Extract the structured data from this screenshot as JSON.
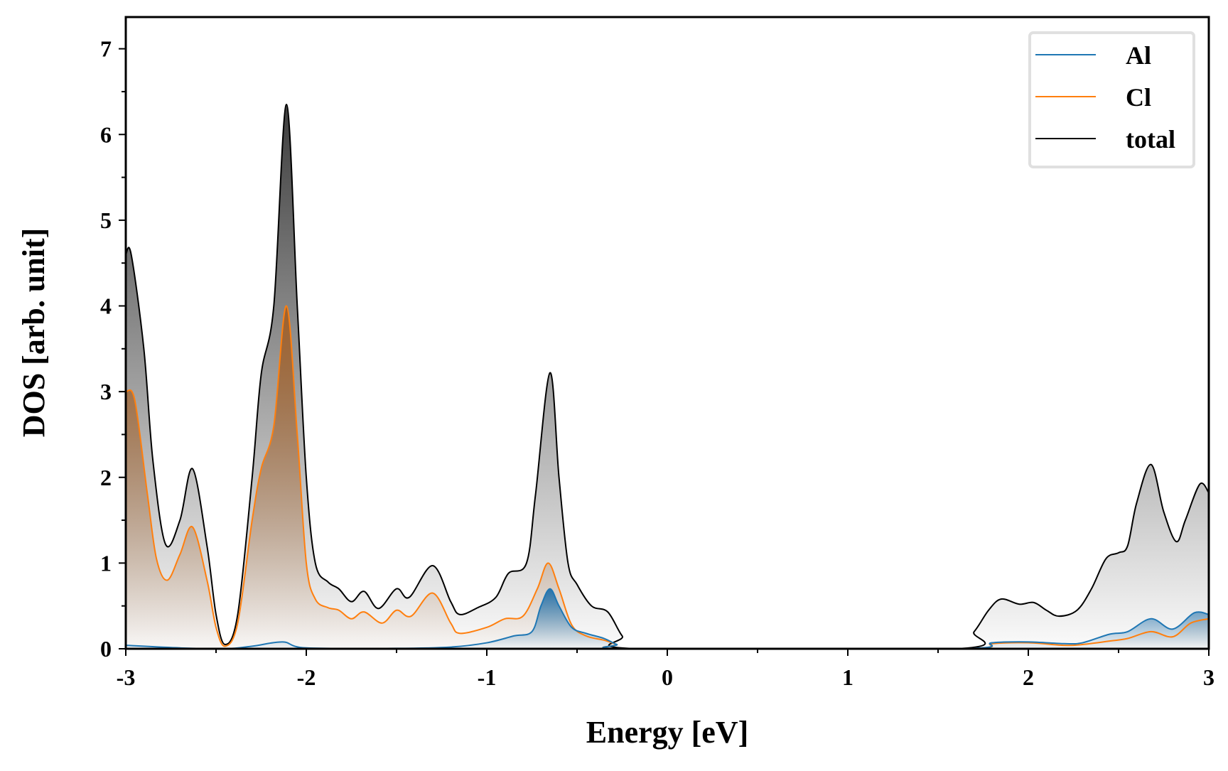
{
  "chart_data": {
    "type": "area",
    "title": "",
    "xlabel": "Energy [eV]",
    "ylabel": "DOS [arb. unit]",
    "xlim": [
      -3,
      3
    ],
    "ylim": [
      0,
      7.37
    ],
    "xticks": [
      -3,
      -2,
      -1,
      0,
      1,
      2,
      3
    ],
    "xtick_labels": [
      "-3",
      "-2",
      "-1",
      "0",
      "1",
      "2",
      "3"
    ],
    "yticks": [
      0,
      1,
      2,
      3,
      4,
      5,
      6,
      7
    ],
    "ytick_labels": [
      "0",
      "1",
      "2",
      "3",
      "4",
      "5",
      "6",
      "7"
    ],
    "grid": false,
    "legend_position": "top-right",
    "series": [
      {
        "name": "Al",
        "color": "#1f77b4",
        "fill": "#1f6ea8",
        "x": [
          -3,
          -2.7,
          -2.45,
          -2.3,
          -2.13,
          -2.0,
          -1.5,
          -1.2,
          -1.0,
          -0.85,
          -0.75,
          -0.7,
          -0.65,
          -0.6,
          -0.53,
          -0.45,
          -0.35,
          -0.28,
          -0.2,
          1.6,
          1.8,
          2.0,
          2.2,
          2.3,
          2.45,
          2.55,
          2.68,
          2.8,
          2.92,
          3.0
        ],
        "y": [
          0.04,
          0.01,
          0.0,
          0.03,
          0.08,
          0.01,
          0.005,
          0.02,
          0.07,
          0.15,
          0.2,
          0.5,
          0.7,
          0.5,
          0.25,
          0.18,
          0.12,
          0.05,
          0.0,
          0.0,
          0.07,
          0.08,
          0.06,
          0.07,
          0.17,
          0.2,
          0.35,
          0.23,
          0.42,
          0.4
        ]
      },
      {
        "name": "Cl",
        "color": "#ff7f0e",
        "fill": "#a0602a",
        "x": [
          -3,
          -2.95,
          -2.88,
          -2.83,
          -2.77,
          -2.7,
          -2.63,
          -2.55,
          -2.5,
          -2.45,
          -2.38,
          -2.3,
          -2.25,
          -2.18,
          -2.11,
          -2.05,
          -2.0,
          -1.95,
          -1.88,
          -1.82,
          -1.75,
          -1.68,
          -1.58,
          -1.5,
          -1.42,
          -1.3,
          -1.2,
          -1.15,
          -1.0,
          -0.9,
          -0.8,
          -0.72,
          -0.66,
          -0.6,
          -0.53,
          -0.45,
          -0.35,
          -0.28,
          -0.2,
          1.6,
          1.8,
          2.0,
          2.2,
          2.3,
          2.45,
          2.55,
          2.68,
          2.8,
          2.9,
          3.0
        ],
        "y": [
          3.0,
          2.9,
          1.8,
          1.05,
          0.8,
          1.1,
          1.42,
          0.8,
          0.25,
          0.03,
          0.3,
          1.5,
          2.1,
          2.6,
          4.0,
          2.5,
          1.0,
          0.58,
          0.48,
          0.45,
          0.35,
          0.43,
          0.3,
          0.45,
          0.38,
          0.65,
          0.3,
          0.18,
          0.25,
          0.35,
          0.38,
          0.7,
          1.0,
          0.7,
          0.28,
          0.15,
          0.1,
          0.05,
          0.0,
          0.0,
          0.06,
          0.07,
          0.04,
          0.05,
          0.09,
          0.12,
          0.2,
          0.14,
          0.3,
          0.35
        ]
      },
      {
        "name": "total",
        "color": "#000000",
        "fill": "#333333",
        "x": [
          -3,
          -2.97,
          -2.9,
          -2.85,
          -2.78,
          -2.7,
          -2.63,
          -2.55,
          -2.5,
          -2.45,
          -2.38,
          -2.3,
          -2.25,
          -2.18,
          -2.11,
          -2.05,
          -2.0,
          -1.95,
          -1.88,
          -1.82,
          -1.75,
          -1.68,
          -1.6,
          -1.5,
          -1.43,
          -1.3,
          -1.2,
          -1.15,
          -1.05,
          -0.95,
          -0.88,
          -0.78,
          -0.73,
          -0.65,
          -0.6,
          -0.55,
          -0.5,
          -0.42,
          -0.33,
          -0.25,
          -0.17,
          1.6,
          1.7,
          1.78,
          1.85,
          1.95,
          2.03,
          2.1,
          2.17,
          2.27,
          2.35,
          2.43,
          2.5,
          2.55,
          2.6,
          2.68,
          2.75,
          2.82,
          2.87,
          2.95,
          3.0
        ],
        "y": [
          4.6,
          4.6,
          3.5,
          2.2,
          1.22,
          1.5,
          2.1,
          1.2,
          0.4,
          0.05,
          0.4,
          2.0,
          3.2,
          4.0,
          6.35,
          4.0,
          2.0,
          1.0,
          0.78,
          0.7,
          0.55,
          0.67,
          0.47,
          0.7,
          0.6,
          0.97,
          0.55,
          0.4,
          0.48,
          0.6,
          0.88,
          1.0,
          1.8,
          3.22,
          2.0,
          1.0,
          0.75,
          0.5,
          0.43,
          0.15,
          0.0,
          0.0,
          0.2,
          0.45,
          0.58,
          0.52,
          0.54,
          0.45,
          0.38,
          0.45,
          0.7,
          1.05,
          1.12,
          1.2,
          1.7,
          2.15,
          1.6,
          1.25,
          1.5,
          1.92,
          1.82
        ]
      }
    ]
  }
}
